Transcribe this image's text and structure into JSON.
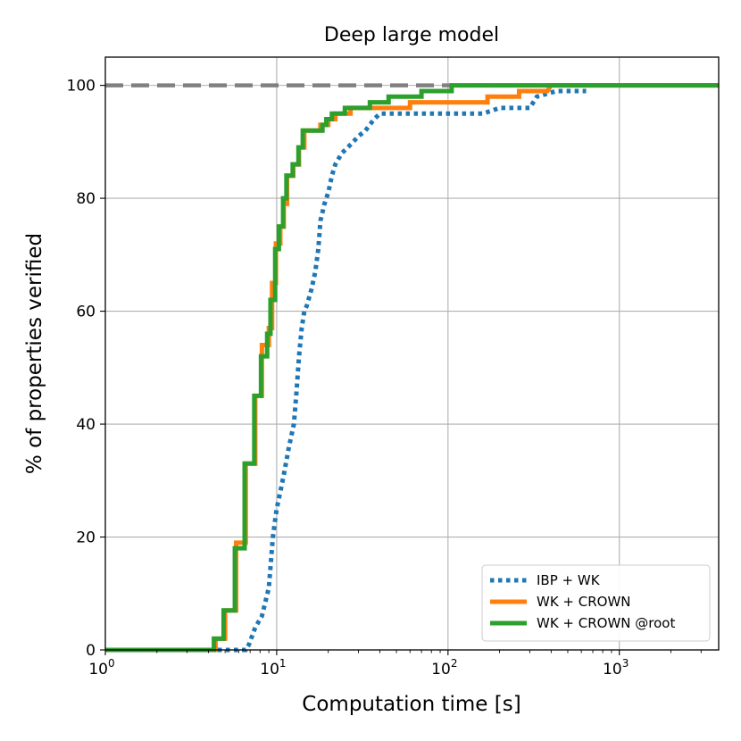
{
  "chart_data": {
    "type": "line",
    "title": "Deep large model",
    "xlabel": "Computation time [s]",
    "ylabel": "% of properties verified",
    "xscale": "log",
    "xlim": [
      1,
      3800
    ],
    "ylim": [
      0,
      105
    ],
    "x_ticks": [
      {
        "value": 1,
        "base": "10",
        "exp": "0"
      },
      {
        "value": 10,
        "base": "10",
        "exp": "1"
      },
      {
        "value": 100,
        "base": "10",
        "exp": "2"
      },
      {
        "value": 1000,
        "base": "10",
        "exp": "3"
      }
    ],
    "y_ticks": [
      0,
      20,
      40,
      60,
      80,
      100
    ],
    "grid": true,
    "legend_position": "lower-right",
    "reference_line": {
      "y": 100,
      "color": "#808080",
      "style": "dashed",
      "label": ""
    },
    "series": [
      {
        "name": "IBP + WK",
        "color": "#1f77b4",
        "style": "dotted",
        "points": [
          [
            1,
            0
          ],
          [
            5.2,
            0
          ],
          [
            6.6,
            0
          ],
          [
            6.9,
            1
          ],
          [
            7.5,
            4
          ],
          [
            8.2,
            6
          ],
          [
            9.0,
            11
          ],
          [
            9.5,
            20
          ],
          [
            10.0,
            25
          ],
          [
            10.5,
            28
          ],
          [
            11.0,
            31
          ],
          [
            11.8,
            36
          ],
          [
            12.6,
            40
          ],
          [
            13.0,
            45
          ],
          [
            13.5,
            52
          ],
          [
            14.0,
            57
          ],
          [
            14.5,
            60
          ],
          [
            15.0,
            61
          ],
          [
            16.0,
            64
          ],
          [
            16.8,
            67
          ],
          [
            17.5,
            71
          ],
          [
            18.0,
            76
          ],
          [
            19.0,
            79
          ],
          [
            20.0,
            81
          ],
          [
            21.0,
            84
          ],
          [
            22.0,
            86
          ],
          [
            24.0,
            88
          ],
          [
            26.0,
            89
          ],
          [
            28.0,
            90
          ],
          [
            30.0,
            91
          ],
          [
            33.0,
            92
          ],
          [
            37.0,
            94
          ],
          [
            40.0,
            95
          ],
          [
            60.0,
            95
          ],
          [
            160.0,
            95
          ],
          [
            200.0,
            96
          ],
          [
            300.0,
            96
          ],
          [
            330.0,
            98
          ],
          [
            430.0,
            99
          ],
          [
            640.0,
            99
          ]
        ]
      },
      {
        "name": "WK + CROWN",
        "color": "#ff7f0e",
        "style": "solid",
        "points": [
          [
            1,
            0
          ],
          [
            4.4,
            0
          ],
          [
            4.4,
            2
          ],
          [
            5.0,
            2
          ],
          [
            5.0,
            7
          ],
          [
            5.8,
            7
          ],
          [
            5.8,
            19
          ],
          [
            6.6,
            19
          ],
          [
            6.6,
            33
          ],
          [
            7.5,
            33
          ],
          [
            7.5,
            45
          ],
          [
            8.2,
            45
          ],
          [
            8.2,
            54
          ],
          [
            9.0,
            54
          ],
          [
            9.0,
            57
          ],
          [
            9.4,
            57
          ],
          [
            9.4,
            65
          ],
          [
            9.9,
            65
          ],
          [
            9.9,
            72
          ],
          [
            10.5,
            72
          ],
          [
            10.5,
            75
          ],
          [
            11.0,
            75
          ],
          [
            11.0,
            79
          ],
          [
            11.5,
            79
          ],
          [
            11.5,
            84
          ],
          [
            12.5,
            84
          ],
          [
            12.5,
            86
          ],
          [
            13.5,
            86
          ],
          [
            13.5,
            89
          ],
          [
            14.5,
            89
          ],
          [
            14.5,
            92
          ],
          [
            18.0,
            92
          ],
          [
            18.0,
            93
          ],
          [
            20.0,
            93
          ],
          [
            20.0,
            94
          ],
          [
            22.0,
            94
          ],
          [
            22.0,
            95
          ],
          [
            27.0,
            95
          ],
          [
            27.0,
            96
          ],
          [
            60.0,
            96
          ],
          [
            60.0,
            97
          ],
          [
            170.0,
            97
          ],
          [
            170.0,
            98
          ],
          [
            260.0,
            98
          ],
          [
            260.0,
            99
          ],
          [
            380.0,
            99
          ],
          [
            400.0,
            100
          ],
          [
            3800,
            100
          ]
        ]
      },
      {
        "name": "WK + CROWN @root",
        "color": "#2ca02c",
        "style": "solid",
        "points": [
          [
            1,
            0
          ],
          [
            4.3,
            0
          ],
          [
            4.3,
            2
          ],
          [
            4.9,
            2
          ],
          [
            4.9,
            7
          ],
          [
            5.7,
            7
          ],
          [
            5.7,
            18
          ],
          [
            6.5,
            18
          ],
          [
            6.5,
            33
          ],
          [
            7.4,
            33
          ],
          [
            7.4,
            45
          ],
          [
            8.1,
            45
          ],
          [
            8.1,
            52
          ],
          [
            8.8,
            52
          ],
          [
            8.8,
            56
          ],
          [
            9.2,
            56
          ],
          [
            9.2,
            62
          ],
          [
            9.8,
            62
          ],
          [
            9.8,
            71
          ],
          [
            10.3,
            71
          ],
          [
            10.3,
            75
          ],
          [
            10.9,
            75
          ],
          [
            10.9,
            80
          ],
          [
            11.4,
            80
          ],
          [
            11.4,
            84
          ],
          [
            12.4,
            84
          ],
          [
            12.4,
            86
          ],
          [
            13.4,
            86
          ],
          [
            13.4,
            89
          ],
          [
            14.2,
            89
          ],
          [
            14.2,
            92
          ],
          [
            18.5,
            92
          ],
          [
            18.5,
            93
          ],
          [
            19.5,
            93
          ],
          [
            19.5,
            94
          ],
          [
            21.0,
            94
          ],
          [
            21.0,
            95
          ],
          [
            25.0,
            95
          ],
          [
            25.0,
            96
          ],
          [
            35.0,
            96
          ],
          [
            35.0,
            97
          ],
          [
            45.0,
            97
          ],
          [
            45.0,
            98
          ],
          [
            70.0,
            98
          ],
          [
            70.0,
            99
          ],
          [
            105.0,
            99
          ],
          [
            105.0,
            100
          ],
          [
            3800,
            100
          ]
        ]
      }
    ]
  }
}
